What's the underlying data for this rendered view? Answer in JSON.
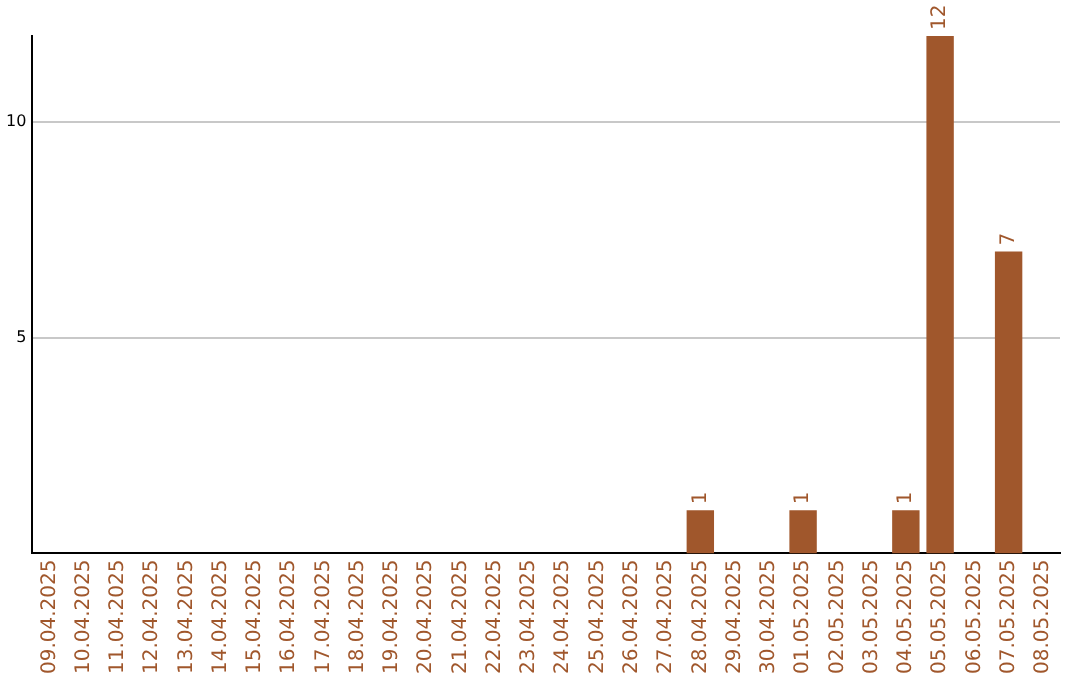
{
  "chart_data": {
    "type": "bar",
    "categories": [
      "09.04.2025",
      "10.04.2025",
      "11.04.2025",
      "12.04.2025",
      "13.04.2025",
      "14.04.2025",
      "15.04.2025",
      "16.04.2025",
      "17.04.2025",
      "18.04.2025",
      "19.04.2025",
      "20.04.2025",
      "21.04.2025",
      "22.04.2025",
      "23.04.2025",
      "24.04.2025",
      "25.04.2025",
      "26.04.2025",
      "27.04.2025",
      "28.04.2025",
      "29.04.2025",
      "30.04.2025",
      "01.05.2025",
      "02.05.2025",
      "03.05.2025",
      "04.05.2025",
      "05.05.2025",
      "06.05.2025",
      "07.05.2025",
      "08.05.2025"
    ],
    "values": [
      0,
      0,
      0,
      0,
      0,
      0,
      0,
      0,
      0,
      0,
      0,
      0,
      0,
      0,
      0,
      0,
      0,
      0,
      0,
      1,
      0,
      0,
      1,
      0,
      0,
      1,
      12,
      0,
      7,
      0
    ],
    "value_labels": [
      null,
      null,
      null,
      null,
      null,
      null,
      null,
      null,
      null,
      null,
      null,
      null,
      null,
      null,
      null,
      null,
      null,
      null,
      null,
      "1",
      null,
      null,
      "1",
      null,
      null,
      "1",
      "12",
      null,
      "7",
      null
    ],
    "color": "#a0572c",
    "ylim": [
      0,
      12
    ],
    "yticks": [
      5,
      10
    ],
    "grid": "y",
    "legend": false
  }
}
